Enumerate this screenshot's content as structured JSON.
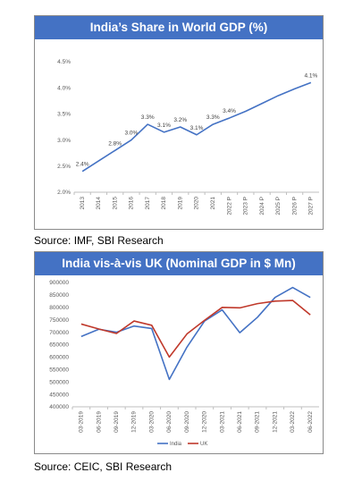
{
  "charts": [
    {
      "title": "India’s Share in World GDP (%)",
      "source": "Source: IMF, SBI Research"
    },
    {
      "title": "India vis-à-vis UK (Nominal GDP in $ Mn)",
      "source": "Source: CEIC, SBI Research"
    }
  ],
  "chart_data": [
    {
      "type": "line",
      "title": "India’s Share in World GDP (%)",
      "categories": [
        "2013",
        "2014",
        "2015",
        "2016",
        "2017",
        "2018",
        "2019",
        "2020",
        "2021",
        "2022 P",
        "2023 P",
        "2024 P",
        "2025 P",
        "2026 P",
        "2027 P"
      ],
      "y_ticks": [
        "2.0%",
        "2.5%",
        "3.0%",
        "3.5%",
        "4.0%",
        "4.5%"
      ],
      "ylim": [
        2.0,
        4.5
      ],
      "series": [
        {
          "values": [
            2.4,
            2.6,
            2.8,
            3.0,
            3.3,
            3.15,
            3.25,
            3.1,
            3.3,
            3.42,
            3.55,
            3.7,
            3.85,
            3.98,
            4.1
          ],
          "color": "#4472c4"
        }
      ],
      "data_labels": [
        {
          "index": 0,
          "text": "2.4%"
        },
        {
          "index": 2,
          "text": "2.8%"
        },
        {
          "index": 3,
          "text": "3.0%"
        },
        {
          "index": 4,
          "text": "3.3%"
        },
        {
          "index": 5,
          "text": "3.1%"
        },
        {
          "index": 6,
          "text": "3.2%"
        },
        {
          "index": 7,
          "text": "3.1%"
        },
        {
          "index": 8,
          "text": "3.3%"
        },
        {
          "index": 9,
          "text": "3.4%"
        },
        {
          "index": 14,
          "text": "4.1%"
        }
      ],
      "grid": false
    },
    {
      "type": "line",
      "title": "India vis-à-vis UK (Nominal GDP in $ Mn)",
      "categories": [
        "03-2019",
        "06-2019",
        "09-2019",
        "12-2019",
        "03-2020",
        "06-2020",
        "09-2020",
        "12-2020",
        "03-2021",
        "06-2021",
        "09-2021",
        "12-2021",
        "03-2022",
        "06-2022"
      ],
      "y_ticks": [
        "400000",
        "450000",
        "500000",
        "550000",
        "600000",
        "650000",
        "700000",
        "750000",
        "800000",
        "850000",
        "900000"
      ],
      "ylim": [
        400000,
        900000
      ],
      "series": [
        {
          "name": "India",
          "color": "#4472c4",
          "values": [
            683000,
            712000,
            700000,
            725000,
            715000,
            510000,
            640000,
            745000,
            790000,
            698000,
            760000,
            840000,
            880000,
            840000
          ]
        },
        {
          "name": "UK",
          "color": "#c0392b",
          "values": [
            733000,
            713000,
            695000,
            745000,
            728000,
            600000,
            693000,
            748000,
            800000,
            798000,
            815000,
            825000,
            828000,
            770000
          ]
        }
      ],
      "legend": "bottom",
      "grid": false
    }
  ]
}
